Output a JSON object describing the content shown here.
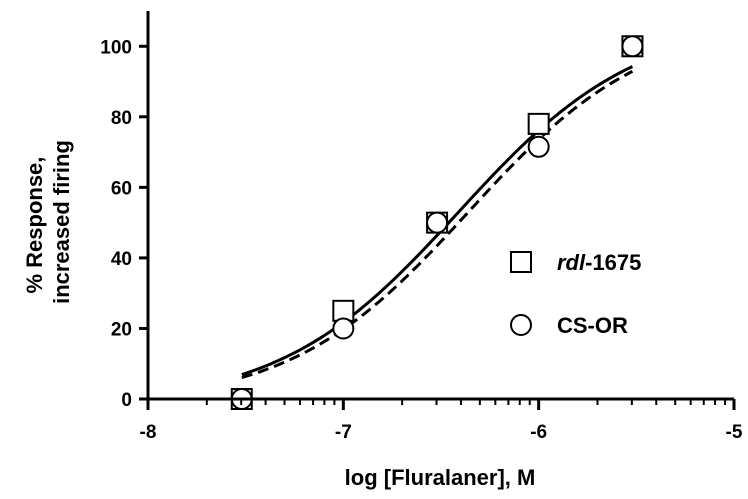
{
  "chart_data": {
    "type": "scatter",
    "title": "",
    "xlabel": "log [Fluralaner], M",
    "ylabel_lines": [
      "% Response,",
      "increased firing"
    ],
    "xlim": [
      -8,
      -5
    ],
    "ylim": [
      0,
      110
    ],
    "xticks": [
      -8,
      -7,
      -6,
      -5
    ],
    "xtick_labels": [
      "-8",
      "-7",
      "-6",
      "-5"
    ],
    "x_minor_ticks_per_decade": 9,
    "yticks": [
      0,
      20,
      40,
      60,
      80,
      100
    ],
    "ytick_labels": [
      "0",
      "20",
      "40",
      "60",
      "80",
      "100"
    ],
    "grid": false,
    "legend_position": "right",
    "series": [
      {
        "name_italic": "rdl",
        "name_rest": "-1675",
        "marker": "square",
        "line": "solid",
        "x": [
          -7.52,
          -7.0,
          -6.52,
          -6.0,
          -5.52
        ],
        "y": [
          0,
          25,
          50,
          78,
          100
        ],
        "fit": {
          "bottom": -2,
          "top": 108,
          "log_ec50": -6.41,
          "hill": 0.95
        }
      },
      {
        "name": "CS-OR",
        "marker": "circle",
        "line": "dashed",
        "x": [
          -7.52,
          -7.0,
          -6.52,
          -6.0,
          -5.52
        ],
        "y": [
          0,
          20,
          50,
          71.5,
          100
        ],
        "fit": {
          "bottom": -2,
          "top": 108,
          "log_ec50": -6.36,
          "hill": 0.95
        }
      }
    ]
  }
}
